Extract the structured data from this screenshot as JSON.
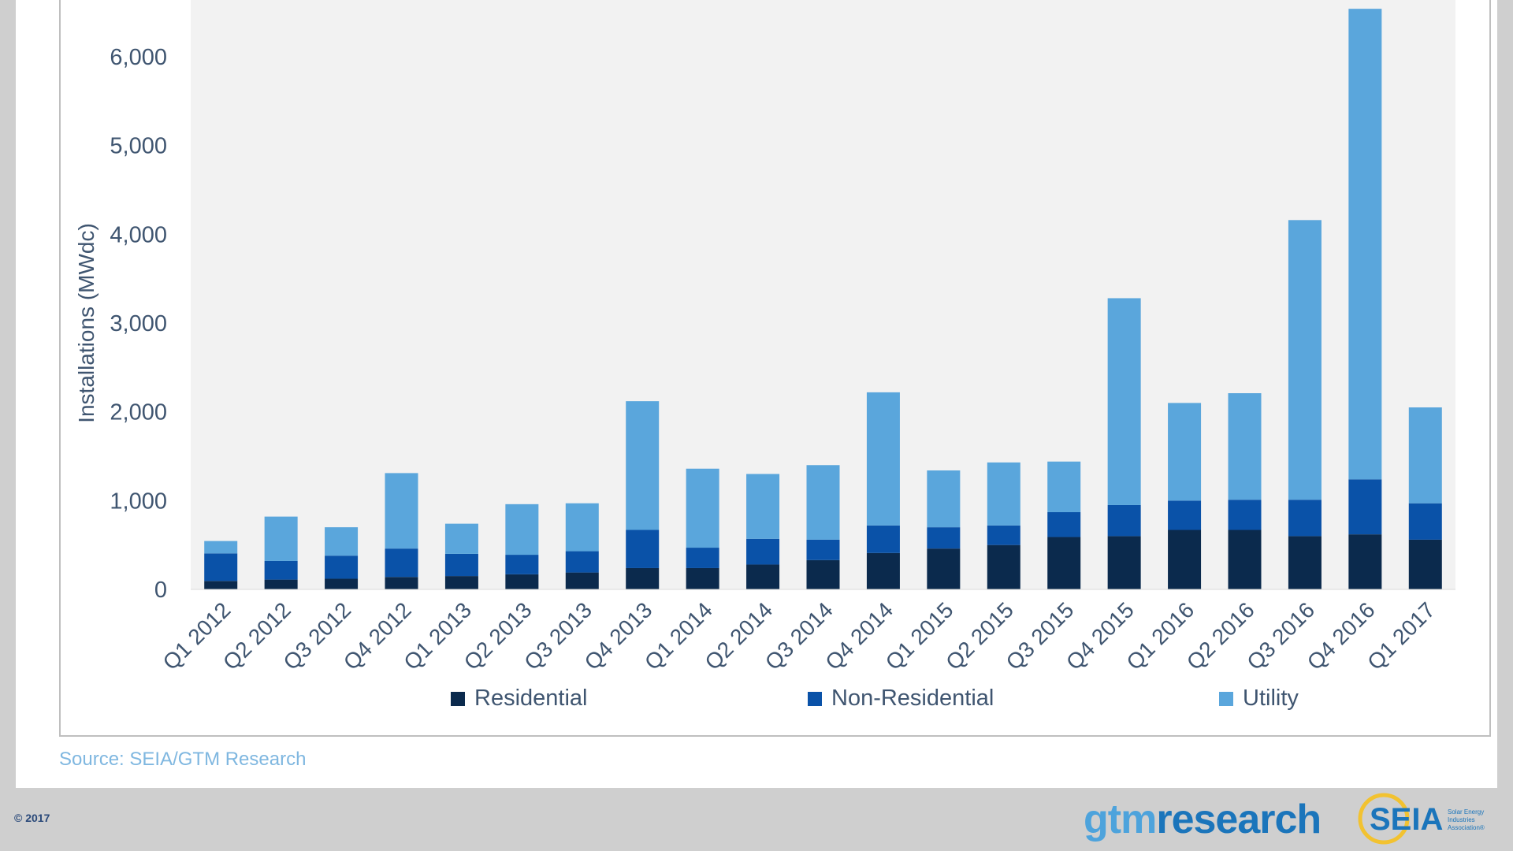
{
  "chart_data": {
    "type": "bar",
    "stacked": true,
    "title": "",
    "xlabel": "",
    "ylabel": "Installations (MWdc)",
    "ylim": [
      0,
      6500
    ],
    "yticks": [
      0,
      1000,
      2000,
      3000,
      4000,
      5000,
      6000
    ],
    "ytick_labels": [
      "0",
      "1,000",
      "2,000",
      "3,000",
      "4,000",
      "5,000",
      "6,000"
    ],
    "grid": false,
    "legend_position": "bottom",
    "categories": [
      "Q1 2012",
      "Q2 2012",
      "Q3 2012",
      "Q4 2012",
      "Q1 2013",
      "Q2 2013",
      "Q3 2013",
      "Q4 2013",
      "Q1 2014",
      "Q2 2014",
      "Q3 2014",
      "Q4 2014",
      "Q1 2015",
      "Q2 2015",
      "Q3 2015",
      "Q4 2015",
      "Q1 2016",
      "Q2 2016",
      "Q3 2016",
      "Q4 2016",
      "Q1 2017"
    ],
    "series": [
      {
        "name": "Residential",
        "color": "#0b2a4d",
        "values": [
          95,
          110,
          120,
          140,
          150,
          170,
          190,
          240,
          240,
          280,
          330,
          410,
          460,
          500,
          590,
          600,
          670,
          670,
          600,
          620,
          560
        ]
      },
      {
        "name": "Non-Residential",
        "color": "#0a52a8",
        "values": [
          310,
          210,
          260,
          320,
          250,
          220,
          240,
          430,
          230,
          290,
          230,
          310,
          240,
          220,
          280,
          350,
          330,
          340,
          410,
          620,
          410
        ]
      },
      {
        "name": "Utility",
        "color": "#5aa6dc",
        "values": [
          140,
          500,
          320,
          850,
          340,
          570,
          540,
          1450,
          890,
          730,
          840,
          1500,
          640,
          710,
          570,
          2330,
          1100,
          1200,
          3150,
          5300,
          1080
        ]
      }
    ]
  },
  "footer": {
    "source": "Source: SEIA/GTM Research",
    "copyright": "© 2017",
    "gtm_logo_a": "gtm",
    "gtm_logo_b": "research",
    "seia_logo": "SEIA",
    "seia_tagline": "Solar Energy Industries Association®"
  }
}
